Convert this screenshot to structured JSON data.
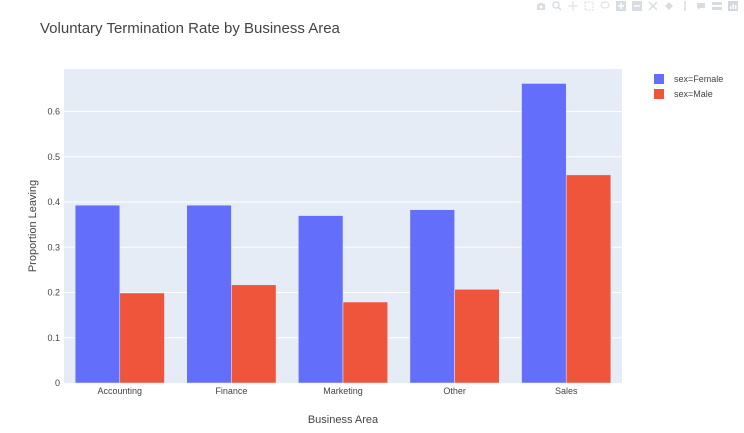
{
  "chart_data": {
    "type": "bar",
    "title": "Voluntary Termination Rate by Business Area",
    "xlabel": "Business Area",
    "ylabel": "Proportion Leaving",
    "categories": [
      "Accounting",
      "Finance",
      "Marketing",
      "Other",
      "Sales"
    ],
    "series": [
      {
        "name": "sex=Female",
        "color": "#636efa",
        "values": [
          0.393,
          0.393,
          0.37,
          0.383,
          0.662
        ]
      },
      {
        "name": "sex=Male",
        "color": "#ef553b",
        "values": [
          0.199,
          0.217,
          0.179,
          0.207,
          0.46
        ]
      }
    ],
    "ylim": [
      0,
      0.694
    ],
    "yticks": [
      0,
      0.1,
      0.2,
      0.3,
      0.4,
      0.5,
      0.6
    ],
    "ytick_labels": [
      "0",
      "0.1",
      "0.2",
      "0.3",
      "0.4",
      "0.5",
      "0.6"
    ],
    "grid": true,
    "legend_position": "top-right",
    "plot_bg": "#e5ecf6"
  },
  "toolbar": {
    "icons": [
      "camera-icon",
      "zoom-icon",
      "pan-icon",
      "box-select-icon",
      "lasso-icon",
      "zoom-in-icon",
      "zoom-out-icon",
      "autoscale-icon",
      "reset-axes-icon",
      "spike-lines-icon",
      "hover-closest-icon",
      "hover-compare-icon",
      "plotly-logo-icon"
    ]
  }
}
